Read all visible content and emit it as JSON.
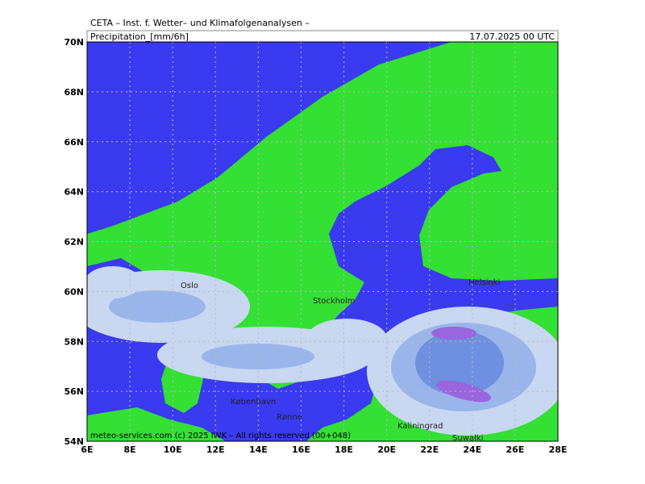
{
  "header": {
    "title": "CETA – Inst. f. Wetter– und Klimafolgenanalysen –",
    "field": "Precipitation_[mm/6h]",
    "valid_time": "17.07.2025 00 UTC"
  },
  "axes": {
    "lat_labels": [
      "70N",
      "68N",
      "66N",
      "64N",
      "62N",
      "60N",
      "58N",
      "56N",
      "54N"
    ],
    "lon_labels": [
      "6E",
      "8E",
      "10E",
      "12E",
      "14E",
      "16E",
      "18E",
      "20E",
      "22E",
      "24E",
      "26E",
      "28E"
    ]
  },
  "places": [
    "Oslo",
    "Stockholm",
    "Helsinki",
    "København",
    "Rønne",
    "Kaliningrad",
    "Suwałki"
  ],
  "footer": "meteo-services.com (c) 2025 IWK – All rights reserved (00+048)"
}
